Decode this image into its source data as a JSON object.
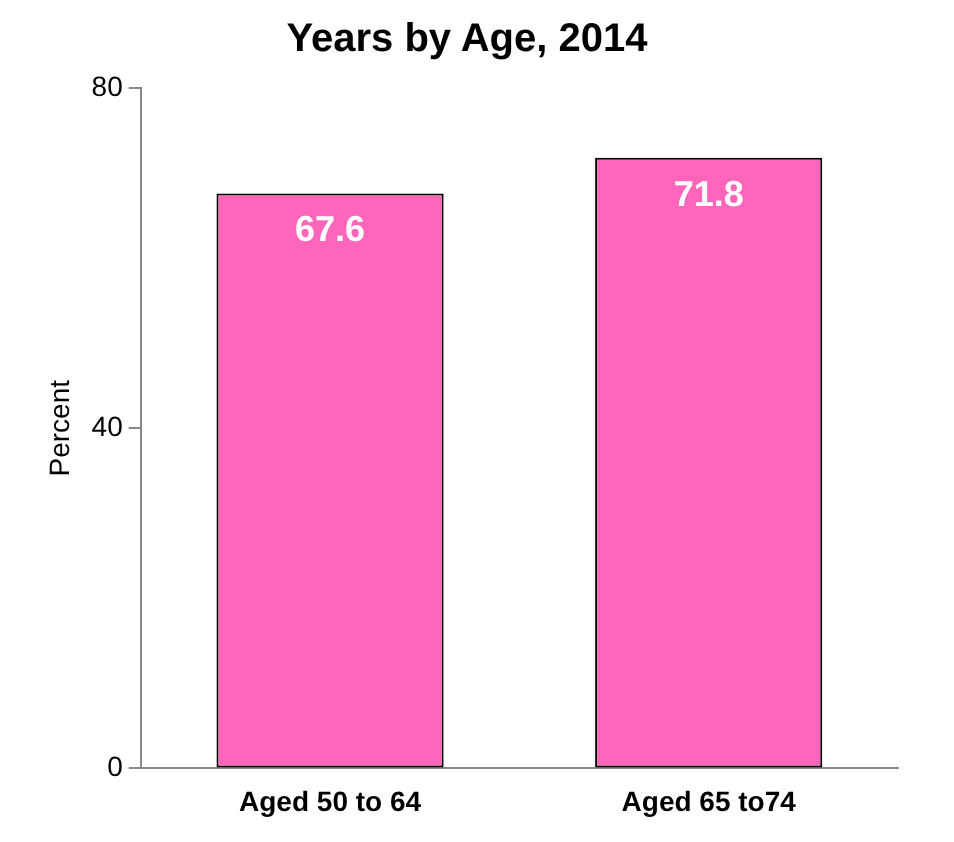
{
  "chart_data": {
    "type": "bar",
    "title": "Years by Age, 2014",
    "ylabel": "Percent",
    "categories": [
      "Aged 50 to 64",
      "Aged 65 to74"
    ],
    "values": [
      67.6,
      71.8
    ],
    "color": "#ff66bb",
    "ylim": [
      0,
      80
    ],
    "yticks": [
      0,
      40,
      80
    ],
    "grid": false,
    "legend": false,
    "data_labels": true
  }
}
